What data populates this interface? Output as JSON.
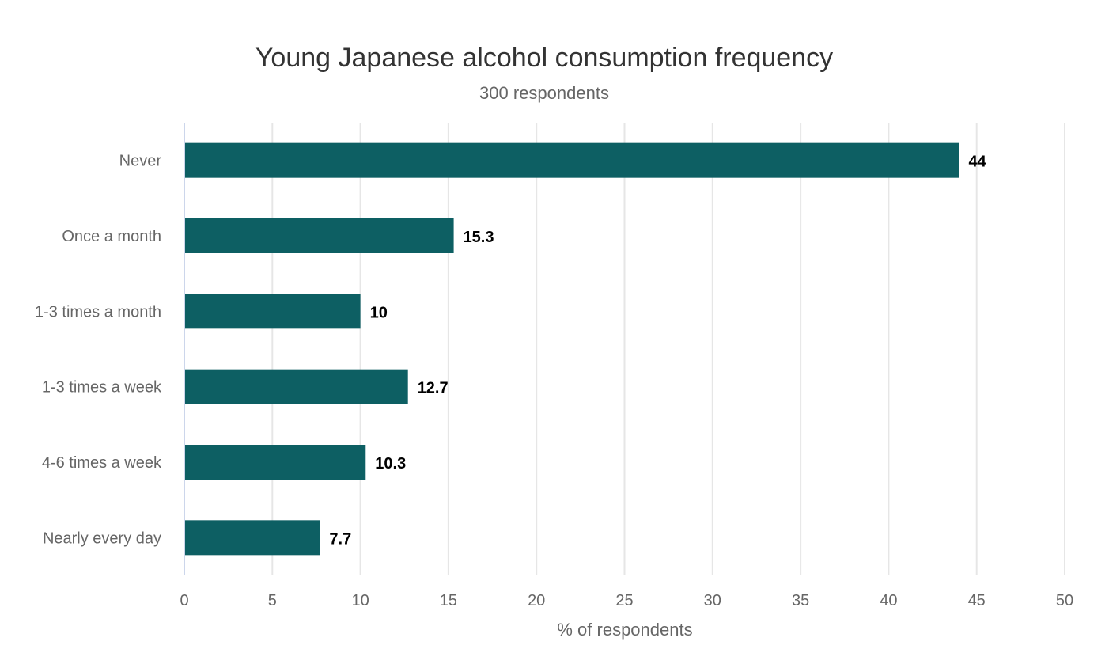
{
  "chart_data": {
    "type": "bar",
    "orientation": "horizontal",
    "title": "Young Japanese alcohol consumption frequency",
    "subtitle": "300 respondents",
    "categories": [
      "Never",
      "Once a month",
      "1-3 times a month",
      "1-3 times a week",
      "4-6 times a week",
      "Nearly every day"
    ],
    "values": [
      44,
      15.3,
      10,
      12.7,
      10.3,
      7.7
    ],
    "data_labels": [
      "44",
      "15.3",
      "10",
      "12.7",
      "10.3",
      "7.7"
    ],
    "xlabel": "% of respondents",
    "ylabel": "",
    "xlim": [
      0,
      50
    ],
    "xticks": [
      0,
      5,
      10,
      15,
      20,
      25,
      30,
      35,
      40,
      45,
      50
    ],
    "grid": true,
    "bar_color": "#0d5f63"
  }
}
